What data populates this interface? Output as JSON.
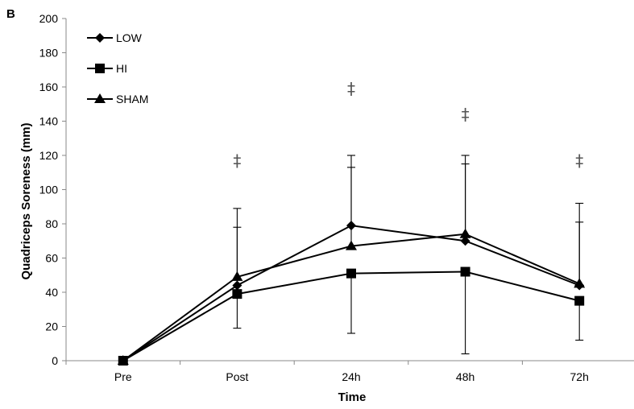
{
  "panel_label": "B",
  "chart_data": {
    "type": "line",
    "categories": [
      "Pre",
      "Post",
      "24h",
      "48h",
      "72h"
    ],
    "xlabel": "Time",
    "ylabel": "Quadriceps Soreness (mm)",
    "ylim": [
      0,
      200
    ],
    "yticks": [
      0,
      20,
      40,
      60,
      80,
      100,
      120,
      140,
      160,
      180,
      200
    ],
    "grid": false,
    "legend_position": "top-left",
    "series": [
      {
        "name": "LOW",
        "marker": "diamond",
        "values": [
          0,
          44,
          79,
          70,
          44
        ],
        "err_upper": [
          0,
          78,
          113,
          115,
          81
        ],
        "err_lower": [
          0,
          44,
          79,
          70,
          44
        ]
      },
      {
        "name": "HI",
        "marker": "square",
        "values": [
          0,
          39,
          51,
          52,
          35
        ],
        "err_upper": [
          0,
          39,
          51,
          52,
          35
        ],
        "err_lower": [
          0,
          19,
          16,
          4,
          12
        ]
      },
      {
        "name": "SHAM",
        "marker": "triangle",
        "values": [
          0,
          49,
          67,
          74,
          45
        ],
        "err_upper": [
          0,
          89,
          120,
          120,
          92
        ],
        "err_lower": [
          0,
          49,
          67,
          74,
          45
        ]
      }
    ],
    "annotations": [
      {
        "category": "Post",
        "text": "‡",
        "y": 117
      },
      {
        "category": "24h",
        "text": "‡",
        "y": 159
      },
      {
        "category": "48h",
        "text": "‡",
        "y": 144
      },
      {
        "category": "72h",
        "text": "‡",
        "y": 117
      }
    ],
    "colors": {
      "line": "#000000",
      "errorbar": "#000000",
      "annotation": "#555555"
    }
  }
}
